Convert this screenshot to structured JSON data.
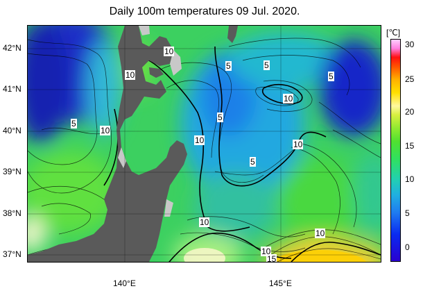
{
  "title": "Daily 100m temperatures 09 Jul. 2020.",
  "latitude_labels": [
    "42°N",
    "41°N",
    "40°N",
    "39°N",
    "38°N",
    "37°N"
  ],
  "longitude_labels": [
    "140°E",
    "145°E"
  ],
  "colorbar": {
    "unit": "[℃]",
    "ticks": [
      "30",
      "25",
      "20",
      "15",
      "10",
      "5",
      "0"
    ]
  },
  "contour_labels": [
    "10",
    "10",
    "5",
    "5",
    "5",
    "10",
    "5",
    "10",
    "5",
    "10",
    "10",
    "5",
    "10",
    "10",
    "10",
    "10",
    "15"
  ],
  "colors": {
    "land": "#5a5a5a",
    "cold": "#1030c0",
    "mid": "#30c0d0",
    "warm": "#60e030",
    "hot": "#fff080"
  }
}
